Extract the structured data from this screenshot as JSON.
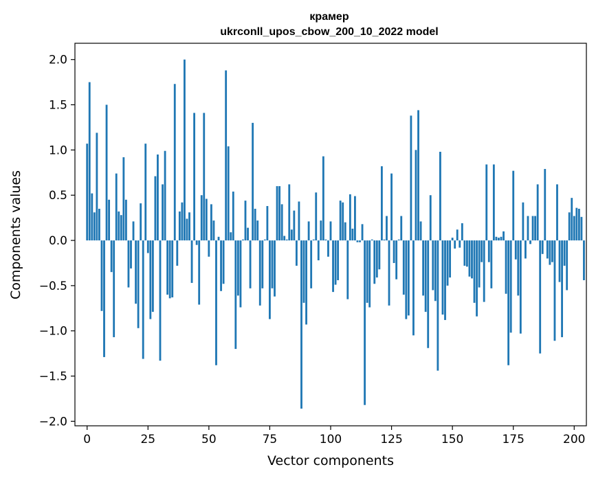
{
  "chart_data": {
    "type": "bar",
    "title": "крамер",
    "subtitle": "ukrconll_upos_cbow_200_10_2022 model",
    "xlabel": "Vector components",
    "ylabel": "Components values",
    "xlim": [
      -5,
      205
    ],
    "ylim": [
      -2.05,
      2.18
    ],
    "grid": false,
    "bar_color": "#1f77b4",
    "xticks": [
      0,
      25,
      50,
      75,
      100,
      125,
      150,
      175,
      200
    ],
    "xtick_labels": [
      "0",
      "25",
      "50",
      "75",
      "100",
      "125",
      "150",
      "175",
      "200"
    ],
    "yticks": [
      -2.0,
      -1.5,
      -1.0,
      -0.5,
      0.0,
      0.5,
      1.0,
      1.5,
      2.0
    ],
    "ytick_labels": [
      "−2.0",
      "−1.5",
      "−1.0",
      "−0.5",
      "0.0",
      "0.5",
      "1.0",
      "1.5",
      "2.0"
    ],
    "values": [
      1.07,
      1.75,
      0.52,
      0.31,
      1.19,
      0.35,
      -0.78,
      -1.29,
      1.5,
      0.45,
      -0.35,
      -1.07,
      0.74,
      0.32,
      0.28,
      0.92,
      0.45,
      -0.52,
      -0.31,
      0.21,
      -0.7,
      -0.97,
      0.41,
      -1.31,
      1.07,
      -0.14,
      -0.87,
      -0.79,
      0.71,
      0.95,
      -1.33,
      0.62,
      0.99,
      -0.6,
      -0.64,
      -0.63,
      1.73,
      -0.28,
      0.32,
      0.42,
      2.0,
      0.24,
      0.31,
      -0.47,
      1.41,
      -0.05,
      -0.71,
      0.5,
      1.41,
      0.46,
      -0.18,
      0.4,
      0.22,
      -1.38,
      0.04,
      -0.56,
      -0.48,
      1.88,
      1.04,
      0.09,
      0.54,
      -1.2,
      -0.61,
      -0.74,
      0.01,
      0.44,
      0.14,
      -0.53,
      1.3,
      0.35,
      0.22,
      -0.72,
      -0.53,
      0.01,
      0.38,
      -0.87,
      -0.53,
      -0.62,
      0.6,
      0.6,
      0.4,
      0.05,
      0.01,
      0.62,
      0.12,
      0.33,
      -0.28,
      0.43,
      -1.86,
      -0.69,
      -0.93,
      0.21,
      -0.53,
      0.01,
      0.53,
      -0.22,
      0.22,
      0.93,
      0.01,
      -0.18,
      0.21,
      -0.57,
      -0.49,
      -0.44,
      0.44,
      0.42,
      0.2,
      -0.65,
      0.51,
      0.13,
      0.49,
      -0.02,
      -0.02,
      0.18,
      -1.82,
      -0.69,
      -0.74,
      0.01,
      -0.48,
      -0.41,
      -0.32,
      0.82,
      0.01,
      0.27,
      -0.72,
      0.74,
      -0.25,
      -0.43,
      0.01,
      0.27,
      -0.6,
      -0.87,
      -0.83,
      1.38,
      -1.05,
      1.0,
      1.44,
      0.21,
      -0.61,
      -0.79,
      -1.19,
      0.5,
      -0.55,
      -0.67,
      -1.44,
      0.98,
      -0.82,
      -0.88,
      -0.5,
      -0.41,
      0.03,
      -0.09,
      0.12,
      -0.08,
      0.19,
      -0.28,
      -0.29,
      -0.4,
      -0.42,
      -0.69,
      -0.84,
      -0.52,
      -0.24,
      -0.68,
      0.84,
      -0.24,
      -0.53,
      0.84,
      0.04,
      0.03,
      0.04,
      0.1,
      -0.59,
      -1.38,
      -1.02,
      0.77,
      -0.21,
      -0.61,
      -1.03,
      0.42,
      -0.2,
      0.27,
      -0.04,
      0.27,
      0.27,
      0.62,
      -1.25,
      -0.15,
      0.79,
      -0.2,
      -0.27,
      -0.24,
      -1.11,
      0.62,
      -0.46,
      -1.07,
      -0.28,
      -0.55,
      0.31,
      0.47,
      0.27,
      0.36,
      0.35,
      0.26,
      -0.44
    ]
  }
}
